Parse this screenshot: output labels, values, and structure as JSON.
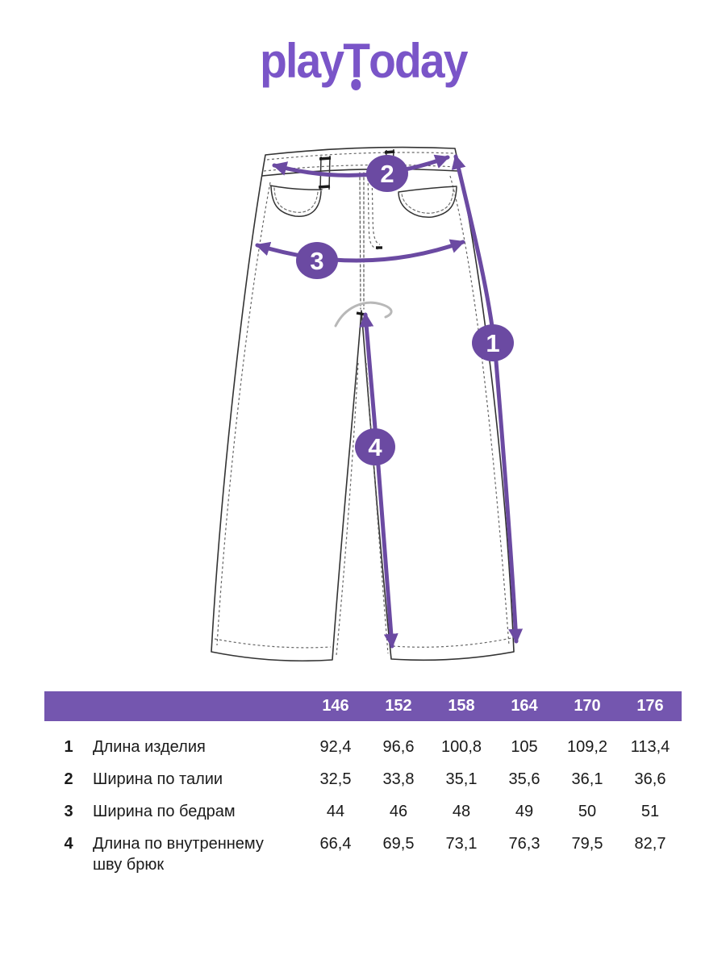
{
  "brand": {
    "logo_part1": "play",
    "logo_t": "T",
    "logo_part2": "oday"
  },
  "colors": {
    "brand_purple": "#7A55C8",
    "accent_purple": "#6B4AA2",
    "table_header_purple": "#7456AF",
    "sketch_line": "#333333",
    "stitch_line": "#666666"
  },
  "diagram": {
    "badges": [
      "1",
      "2",
      "3",
      "4"
    ]
  },
  "table": {
    "sizes": [
      "146",
      "152",
      "158",
      "164",
      "170",
      "176"
    ],
    "rows": [
      {
        "num": "1",
        "label": "Длина изделия",
        "values": [
          "92,4",
          "96,6",
          "100,8",
          "105",
          "109,2",
          "113,4"
        ]
      },
      {
        "num": "2",
        "label": "Ширина по талии",
        "values": [
          "32,5",
          "33,8",
          "35,1",
          "35,6",
          "36,1",
          "36,6"
        ]
      },
      {
        "num": "3",
        "label": "Ширина по бедрам",
        "values": [
          "44",
          "46",
          "48",
          "49",
          "50",
          "51"
        ]
      },
      {
        "num": "4",
        "label": "Длина по внутреннему шву брюк",
        "values": [
          "66,4",
          "69,5",
          "73,1",
          "76,3",
          "79,5",
          "82,7"
        ]
      }
    ]
  }
}
